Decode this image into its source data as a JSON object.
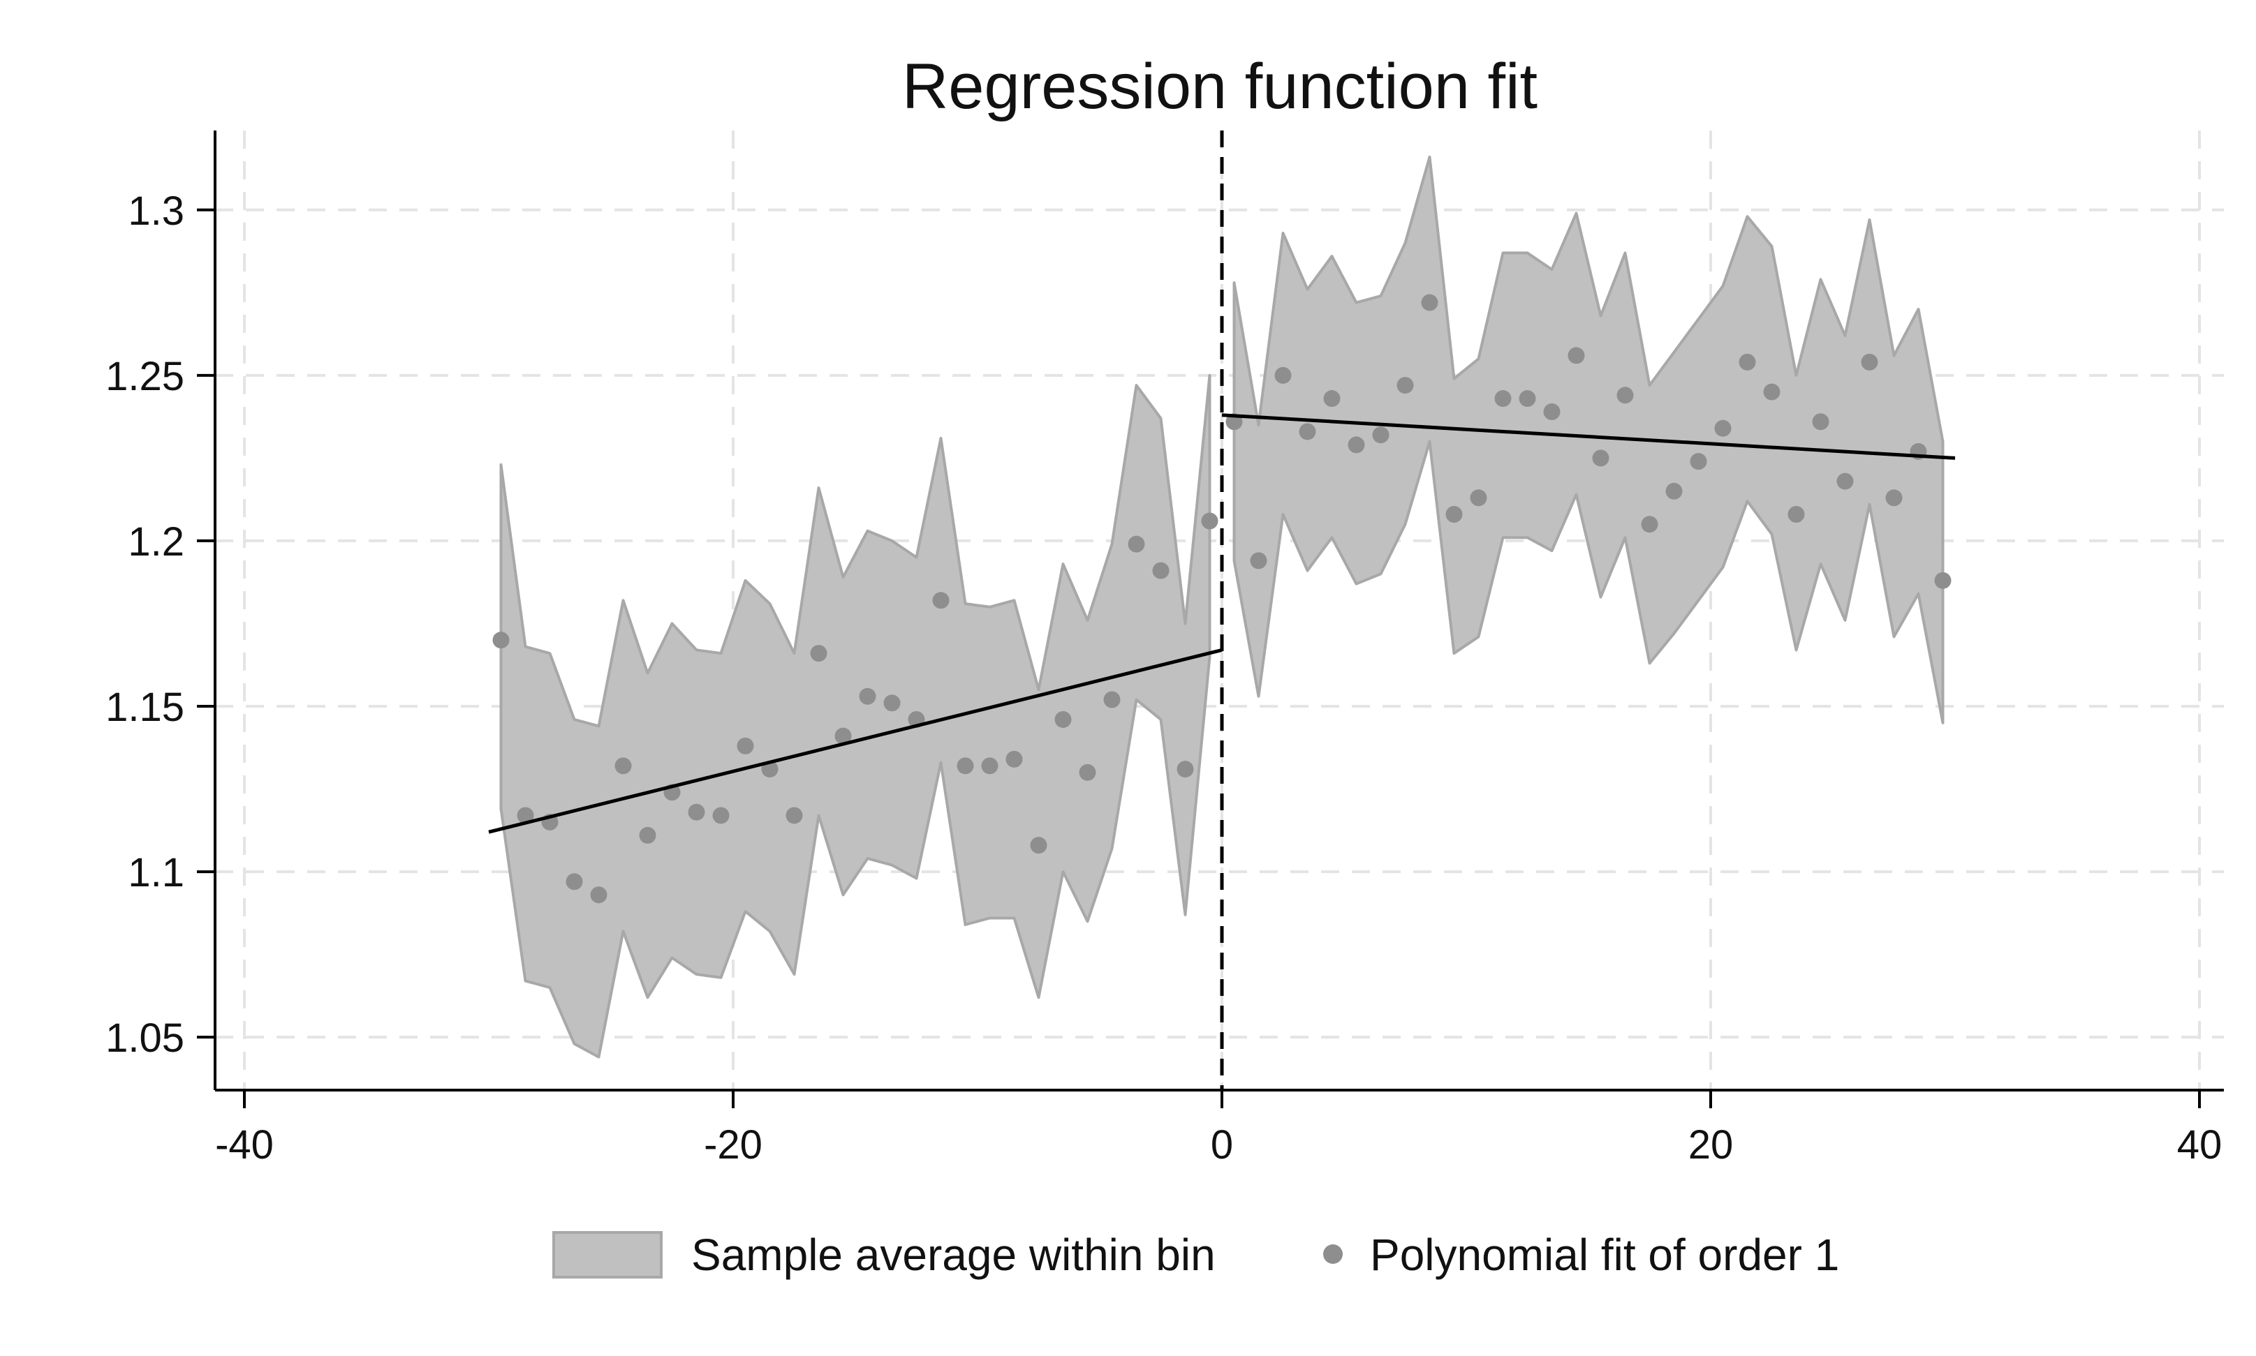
{
  "chart_data": {
    "type": "scatter",
    "title": "Regression function fit",
    "xlabel": "",
    "ylabel": "",
    "xlim": [
      -41.2,
      41.0
    ],
    "ylim": [
      1.034,
      1.324
    ],
    "x_ticks": [
      -40,
      -20,
      0,
      20,
      40
    ],
    "y_ticks": [
      1.05,
      1.1,
      1.15,
      1.2,
      1.25,
      1.3
    ],
    "x_tick_labels": [
      "-40",
      "-20",
      "0",
      "20",
      "40"
    ],
    "y_tick_labels": [
      "1.05",
      "1.1",
      "1.15",
      "1.2",
      "1.25",
      "1.3"
    ],
    "grid": true,
    "cutoff": 0,
    "legend_position": "bottom",
    "legend": [
      {
        "label": "Sample average within bin",
        "marker": "area"
      },
      {
        "label": "Polynomial fit of order 1",
        "marker": "dot"
      }
    ],
    "colors": {
      "band": "#c0c0c0",
      "band_edge": "#a8a8a8",
      "dots": "#8e8e8e",
      "fit": "#000000",
      "grid": "#e4e4e4"
    },
    "series": [
      {
        "name": "Sample average within bin",
        "kind": "band",
        "segments": [
          {
            "points": [
              [
                -29.5,
                1.119,
                1.223
              ],
              [
                -28.5,
                1.067,
                1.168
              ],
              [
                -27.5,
                1.065,
                1.166
              ],
              [
                -26.5,
                1.048,
                1.146
              ],
              [
                -25.5,
                1.044,
                1.144
              ],
              [
                -24.5,
                1.082,
                1.182
              ],
              [
                -23.5,
                1.062,
                1.16
              ],
              [
                -22.5,
                1.074,
                1.175
              ],
              [
                -21.5,
                1.069,
                1.167
              ],
              [
                -20.5,
                1.068,
                1.166
              ],
              [
                -19.5,
                1.088,
                1.188
              ],
              [
                -18.5,
                1.082,
                1.181
              ],
              [
                -17.5,
                1.069,
                1.166
              ],
              [
                -16.5,
                1.117,
                1.216
              ],
              [
                -15.5,
                1.093,
                1.189
              ],
              [
                -14.5,
                1.104,
                1.203
              ],
              [
                -13.5,
                1.102,
                1.2
              ],
              [
                -12.5,
                1.098,
                1.195
              ],
              [
                -11.5,
                1.133,
                1.231
              ],
              [
                -10.5,
                1.084,
                1.181
              ],
              [
                -9.5,
                1.086,
                1.18
              ],
              [
                -8.5,
                1.086,
                1.182
              ],
              [
                -7.5,
                1.062,
                1.155
              ],
              [
                -6.5,
                1.1,
                1.193
              ],
              [
                -5.5,
                1.085,
                1.176
              ],
              [
                -4.5,
                1.107,
                1.199
              ],
              [
                -3.5,
                1.152,
                1.247
              ],
              [
                -2.5,
                1.146,
                1.237
              ],
              [
                -1.5,
                1.087,
                1.175
              ],
              [
                -0.5,
                1.165,
                1.25
              ]
            ]
          },
          {
            "points": [
              [
                0.5,
                1.194,
                1.278
              ],
              [
                1.5,
                1.153,
                1.235
              ],
              [
                2.5,
                1.208,
                1.293
              ],
              [
                3.5,
                1.191,
                1.276
              ],
              [
                4.5,
                1.201,
                1.286
              ],
              [
                5.5,
                1.187,
                1.272
              ],
              [
                6.5,
                1.19,
                1.274
              ],
              [
                7.5,
                1.205,
                1.29
              ],
              [
                8.5,
                1.23,
                1.316
              ],
              [
                9.5,
                1.166,
                1.249
              ],
              [
                10.5,
                1.171,
                1.255
              ],
              [
                11.5,
                1.201,
                1.287
              ],
              [
                12.5,
                1.201,
                1.287
              ],
              [
                13.5,
                1.197,
                1.282
              ],
              [
                14.5,
                1.214,
                1.299
              ],
              [
                15.5,
                1.183,
                1.268
              ],
              [
                16.5,
                1.201,
                1.287
              ],
              [
                17.5,
                1.163,
                1.247
              ],
              [
                18.5,
                1.172,
                1.257
              ],
              [
                19.5,
                1.182,
                1.267
              ],
              [
                20.5,
                1.192,
                1.277
              ],
              [
                21.5,
                1.212,
                1.298
              ],
              [
                22.5,
                1.202,
                1.289
              ],
              [
                23.5,
                1.167,
                1.25
              ],
              [
                24.5,
                1.193,
                1.279
              ],
              [
                25.5,
                1.176,
                1.262
              ],
              [
                26.5,
                1.211,
                1.297
              ],
              [
                27.5,
                1.171,
                1.256
              ],
              [
                28.5,
                1.184,
                1.27
              ],
              [
                29.5,
                1.145,
                1.23
              ]
            ]
          }
        ]
      },
      {
        "name": "Polynomial fit of order 1",
        "kind": "dots",
        "points": [
          [
            -29.5,
            1.17
          ],
          [
            -28.5,
            1.117
          ],
          [
            -27.5,
            1.115
          ],
          [
            -26.5,
            1.097
          ],
          [
            -25.5,
            1.093
          ],
          [
            -24.5,
            1.132
          ],
          [
            -23.5,
            1.111
          ],
          [
            -22.5,
            1.124
          ],
          [
            -21.5,
            1.118
          ],
          [
            -20.5,
            1.117
          ],
          [
            -19.5,
            1.138
          ],
          [
            -18.5,
            1.131
          ],
          [
            -17.5,
            1.117
          ],
          [
            -16.5,
            1.166
          ],
          [
            -15.5,
            1.141
          ],
          [
            -14.5,
            1.153
          ],
          [
            -13.5,
            1.151
          ],
          [
            -12.5,
            1.146
          ],
          [
            -11.5,
            1.182
          ],
          [
            -10.5,
            1.132
          ],
          [
            -9.5,
            1.132
          ],
          [
            -8.5,
            1.134
          ],
          [
            -7.5,
            1.108
          ],
          [
            -6.5,
            1.146
          ],
          [
            -5.5,
            1.13
          ],
          [
            -4.5,
            1.152
          ],
          [
            -3.5,
            1.199
          ],
          [
            -2.5,
            1.191
          ],
          [
            -1.5,
            1.131
          ],
          [
            -0.5,
            1.206
          ],
          [
            0.5,
            1.236
          ],
          [
            1.5,
            1.194
          ],
          [
            2.5,
            1.25
          ],
          [
            3.5,
            1.233
          ],
          [
            4.5,
            1.243
          ],
          [
            5.5,
            1.229
          ],
          [
            6.5,
            1.232
          ],
          [
            7.5,
            1.247
          ],
          [
            8.5,
            1.272
          ],
          [
            9.5,
            1.208
          ],
          [
            10.5,
            1.213
          ],
          [
            11.5,
            1.243
          ],
          [
            12.5,
            1.243
          ],
          [
            13.5,
            1.239
          ],
          [
            14.5,
            1.256
          ],
          [
            15.5,
            1.225
          ],
          [
            16.5,
            1.244
          ],
          [
            17.5,
            1.205
          ],
          [
            18.5,
            1.215
          ],
          [
            19.5,
            1.224
          ],
          [
            20.5,
            1.234
          ],
          [
            21.5,
            1.254
          ],
          [
            22.5,
            1.245
          ],
          [
            23.5,
            1.208
          ],
          [
            24.5,
            1.236
          ],
          [
            25.5,
            1.218
          ],
          [
            26.5,
            1.254
          ],
          [
            27.5,
            1.213
          ],
          [
            28.5,
            1.227
          ],
          [
            29.5,
            1.188
          ]
        ]
      },
      {
        "name": "",
        "kind": "fit_line",
        "segments": [
          {
            "points": [
              [
                -30,
                1.112
              ],
              [
                0,
                1.167
              ]
            ]
          },
          {
            "points": [
              [
                0,
                1.238
              ],
              [
                30,
                1.225
              ]
            ]
          }
        ]
      }
    ]
  }
}
